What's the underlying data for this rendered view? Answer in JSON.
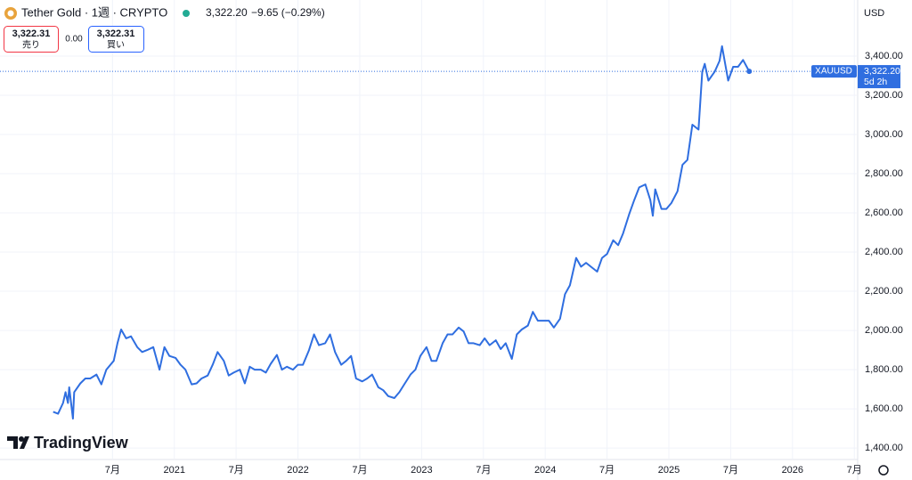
{
  "header": {
    "title": "Tether Gold · 1週 · CRYPTO",
    "price": "3,322.20",
    "change": "−9.65 (−0.29%)",
    "sell_price": "3,322.31",
    "sell_label": "売り",
    "spread": "0.00",
    "buy_price": "3,322.31",
    "buy_label": "買い",
    "currency": "USD",
    "last_price_label": "3,322.20",
    "countdown": "5d 2h",
    "brand": "TradingView"
  },
  "chart_data": {
    "type": "line",
    "x": [
      2020.02,
      2020.06,
      2020.1,
      2020.12,
      2020.14,
      2020.15,
      2020.18,
      2020.19,
      2020.24,
      2020.28,
      2020.32,
      2020.37,
      2020.41,
      2020.45,
      2020.51,
      2020.54,
      2020.57,
      2020.61,
      2020.65,
      2020.7,
      2020.74,
      2020.78,
      2020.83,
      2020.88,
      2020.92,
      2020.96,
      2021.01,
      2021.05,
      2021.09,
      2021.14,
      2021.18,
      2021.22,
      2021.27,
      2021.31,
      2021.35,
      2021.4,
      2021.44,
      2021.48,
      2021.53,
      2021.57,
      2021.61,
      2021.65,
      2021.7,
      2021.74,
      2021.78,
      2021.83,
      2021.87,
      2021.91,
      2021.96,
      2022.0,
      2022.04,
      2022.09,
      2022.13,
      2022.17,
      2022.22,
      2022.26,
      2022.3,
      2022.35,
      2022.39,
      2022.43,
      2022.47,
      2022.52,
      2022.56,
      2022.6,
      2022.65,
      2022.69,
      2022.73,
      2022.78,
      2022.82,
      2022.86,
      2022.91,
      2022.95,
      2022.99,
      2023.04,
      2023.08,
      2023.12,
      2023.17,
      2023.21,
      2023.25,
      2023.3,
      2023.34,
      2023.38,
      2023.42,
      2023.47,
      2023.51,
      2023.55,
      2023.6,
      2023.64,
      2023.68,
      2023.73,
      2023.77,
      2023.81,
      2023.86,
      2023.9,
      2023.94,
      2023.99,
      2024.03,
      2024.07,
      2024.12,
      2024.16,
      2024.2,
      2024.25,
      2024.29,
      2024.33,
      2024.37,
      2024.42,
      2024.46,
      2024.5,
      2024.55,
      2024.59,
      2024.63,
      2024.68,
      2024.72,
      2024.76,
      2024.81,
      2024.85,
      2024.87,
      2024.89,
      2024.94,
      2024.98,
      2025.02,
      2025.07,
      2025.11,
      2025.15,
      2025.19,
      2025.24,
      2025.27,
      2025.29,
      2025.32,
      2025.37,
      2025.41,
      2025.43,
      2025.48,
      2025.52,
      2025.56,
      2025.6,
      2025.65
    ],
    "series": [
      {
        "name": "XAUUSD",
        "color": "#2f6ee0",
        "values": [
          1585,
          1575,
          1630,
          1685,
          1630,
          1710,
          1550,
          1685,
          1730,
          1755,
          1755,
          1775,
          1725,
          1800,
          1845,
          1935,
          2005,
          1960,
          1970,
          1915,
          1890,
          1900,
          1915,
          1800,
          1915,
          1870,
          1860,
          1825,
          1800,
          1725,
          1730,
          1755,
          1770,
          1825,
          1890,
          1845,
          1770,
          1785,
          1800,
          1730,
          1815,
          1800,
          1800,
          1785,
          1830,
          1875,
          1800,
          1815,
          1800,
          1825,
          1825,
          1900,
          1980,
          1925,
          1935,
          1980,
          1890,
          1825,
          1845,
          1870,
          1755,
          1740,
          1755,
          1775,
          1710,
          1695,
          1665,
          1655,
          1685,
          1725,
          1775,
          1800,
          1870,
          1915,
          1845,
          1845,
          1935,
          1980,
          1980,
          2015,
          1995,
          1935,
          1935,
          1925,
          1960,
          1925,
          1950,
          1905,
          1935,
          1855,
          1980,
          2005,
          2025,
          2095,
          2050,
          2050,
          2050,
          2015,
          2060,
          2185,
          2230,
          2370,
          2325,
          2345,
          2325,
          2300,
          2370,
          2390,
          2460,
          2435,
          2495,
          2595,
          2665,
          2730,
          2745,
          2665,
          2585,
          2720,
          2620,
          2620,
          2650,
          2710,
          2845,
          2870,
          3050,
          3025,
          3320,
          3360,
          3275,
          3320,
          3375,
          3450,
          3275,
          3345,
          3345,
          3380,
          3322.2
        ]
      }
    ],
    "xlim": [
      2019.59,
      2026.52
    ],
    "xticks": [
      {
        "value": 2020.5,
        "label": "7月"
      },
      2021,
      {
        "value": 2021.5,
        "label": "7月"
      },
      2022,
      {
        "value": 2022.5,
        "label": "7月"
      },
      2023,
      {
        "value": 2023.5,
        "label": "7月"
      },
      2024,
      {
        "value": 2024.5,
        "label": "7月"
      },
      2025,
      {
        "value": 2025.5,
        "label": "7月"
      },
      2026,
      {
        "value": 2026.5,
        "label": "7月"
      }
    ],
    "ylim": [
      1346,
      3686
    ],
    "yticks": [
      {
        "value": 1400,
        "label": "1,400.00"
      },
      {
        "value": 1600,
        "label": "1,600.00"
      },
      {
        "value": 1800,
        "label": "1,800.00"
      },
      {
        "value": 2000,
        "label": "2,000.00"
      },
      {
        "value": 2200,
        "label": "2,200.00"
      },
      {
        "value": 2400,
        "label": "2,400.00"
      },
      {
        "value": 2600,
        "label": "2,600.00"
      },
      {
        "value": 2800,
        "label": "2,800.00"
      },
      {
        "value": 3000,
        "label": "3,000.00"
      },
      {
        "value": 3200,
        "label": "3,200.00"
      },
      {
        "value": 3400,
        "label": "3,400.00"
      }
    ],
    "grid": true
  }
}
